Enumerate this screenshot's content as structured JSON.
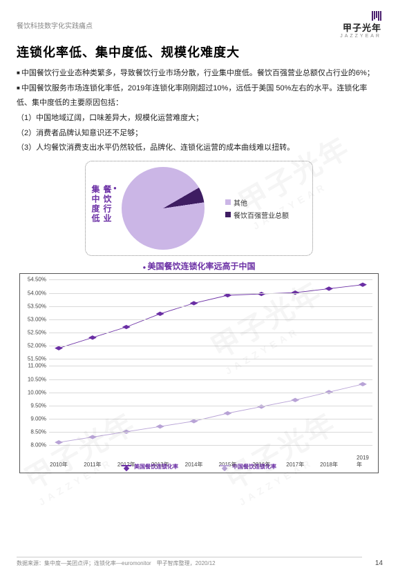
{
  "header": {
    "breadcrumb": "餐饮科技数字化实践痛点",
    "logo_cn": "甲子光年",
    "logo_en": "JAZZYEAR"
  },
  "title": "连锁化率低、集中度低、规模化难度大",
  "paragraphs": {
    "p1": "中国餐饮行业业态种类繁多，导致餐饮行业市场分散，行业集中度低。餐饮百强营业总额仅占行业的6%；",
    "p2": "中国餐饮服务市场连锁化率低，2019年连锁化率刚刚超过10%，远低于美国 50%左右的水平。连锁化率低、集中度低的主要原因包括：",
    "r1": "（1）中国地域辽阔，口味差异大，规模化运营难度大；",
    "r2": "（2）消费者品牌认知意识还不足够；",
    "r3": "（3）人均餐饮消费支出水平仍然较低，品牌化、连锁化运营的成本曲线难以扭转。"
  },
  "pie_chart": {
    "type": "pie",
    "side_title": "餐饮行业集中度低",
    "slices": [
      {
        "label": "其他",
        "value": 94,
        "color": "#cbb6e6"
      },
      {
        "label": "餐饮百强营业总额",
        "value": 6,
        "color": "#3e1d62"
      }
    ],
    "background": "#ffffff",
    "border_color": "#888888",
    "legend": {
      "item0": "其他",
      "item1": "餐饮百强营业总额"
    }
  },
  "line_chart": {
    "type": "line",
    "title": "美国餐饮连锁化率远高于中国",
    "x_years": [
      "2010年",
      "2011年",
      "2012年",
      "2013年",
      "2014年",
      "2015年",
      "2016年",
      "2017年",
      "2018年",
      "2019年"
    ],
    "y_ticks_upper": [
      "51.50%",
      "52.00%",
      "52.50%",
      "53.00%",
      "53.50%",
      "54.00%",
      "54.50%"
    ],
    "y_ticks_lower": [
      "8.00%",
      "8.50%",
      "9.00%",
      "9.50%",
      "10.00%",
      "10.50%",
      "11.00%"
    ],
    "series_us": {
      "label": "美国餐饮连锁化率",
      "color": "#6a2ea4",
      "values": [
        51.9,
        52.3,
        52.7,
        53.2,
        53.6,
        53.9,
        53.95,
        54.0,
        54.15,
        54.3
      ]
    },
    "series_cn": {
      "label": "中国餐饮连锁化率",
      "color": "#b8a3d6",
      "values": [
        8.1,
        8.3,
        8.5,
        8.7,
        8.9,
        9.2,
        9.45,
        9.7,
        10.0,
        10.3
      ]
    },
    "grid_color": "#d9d9d9",
    "axis_font_size": 8,
    "line_width": 2,
    "marker": "diamond"
  },
  "footer": {
    "source": "数据来源：集中度—美团点评；连锁化率—euromonitor　甲子智库整理，2020/12",
    "page": "14"
  },
  "watermark": {
    "cn": "甲子光年",
    "en": "JAZZYEAR"
  }
}
